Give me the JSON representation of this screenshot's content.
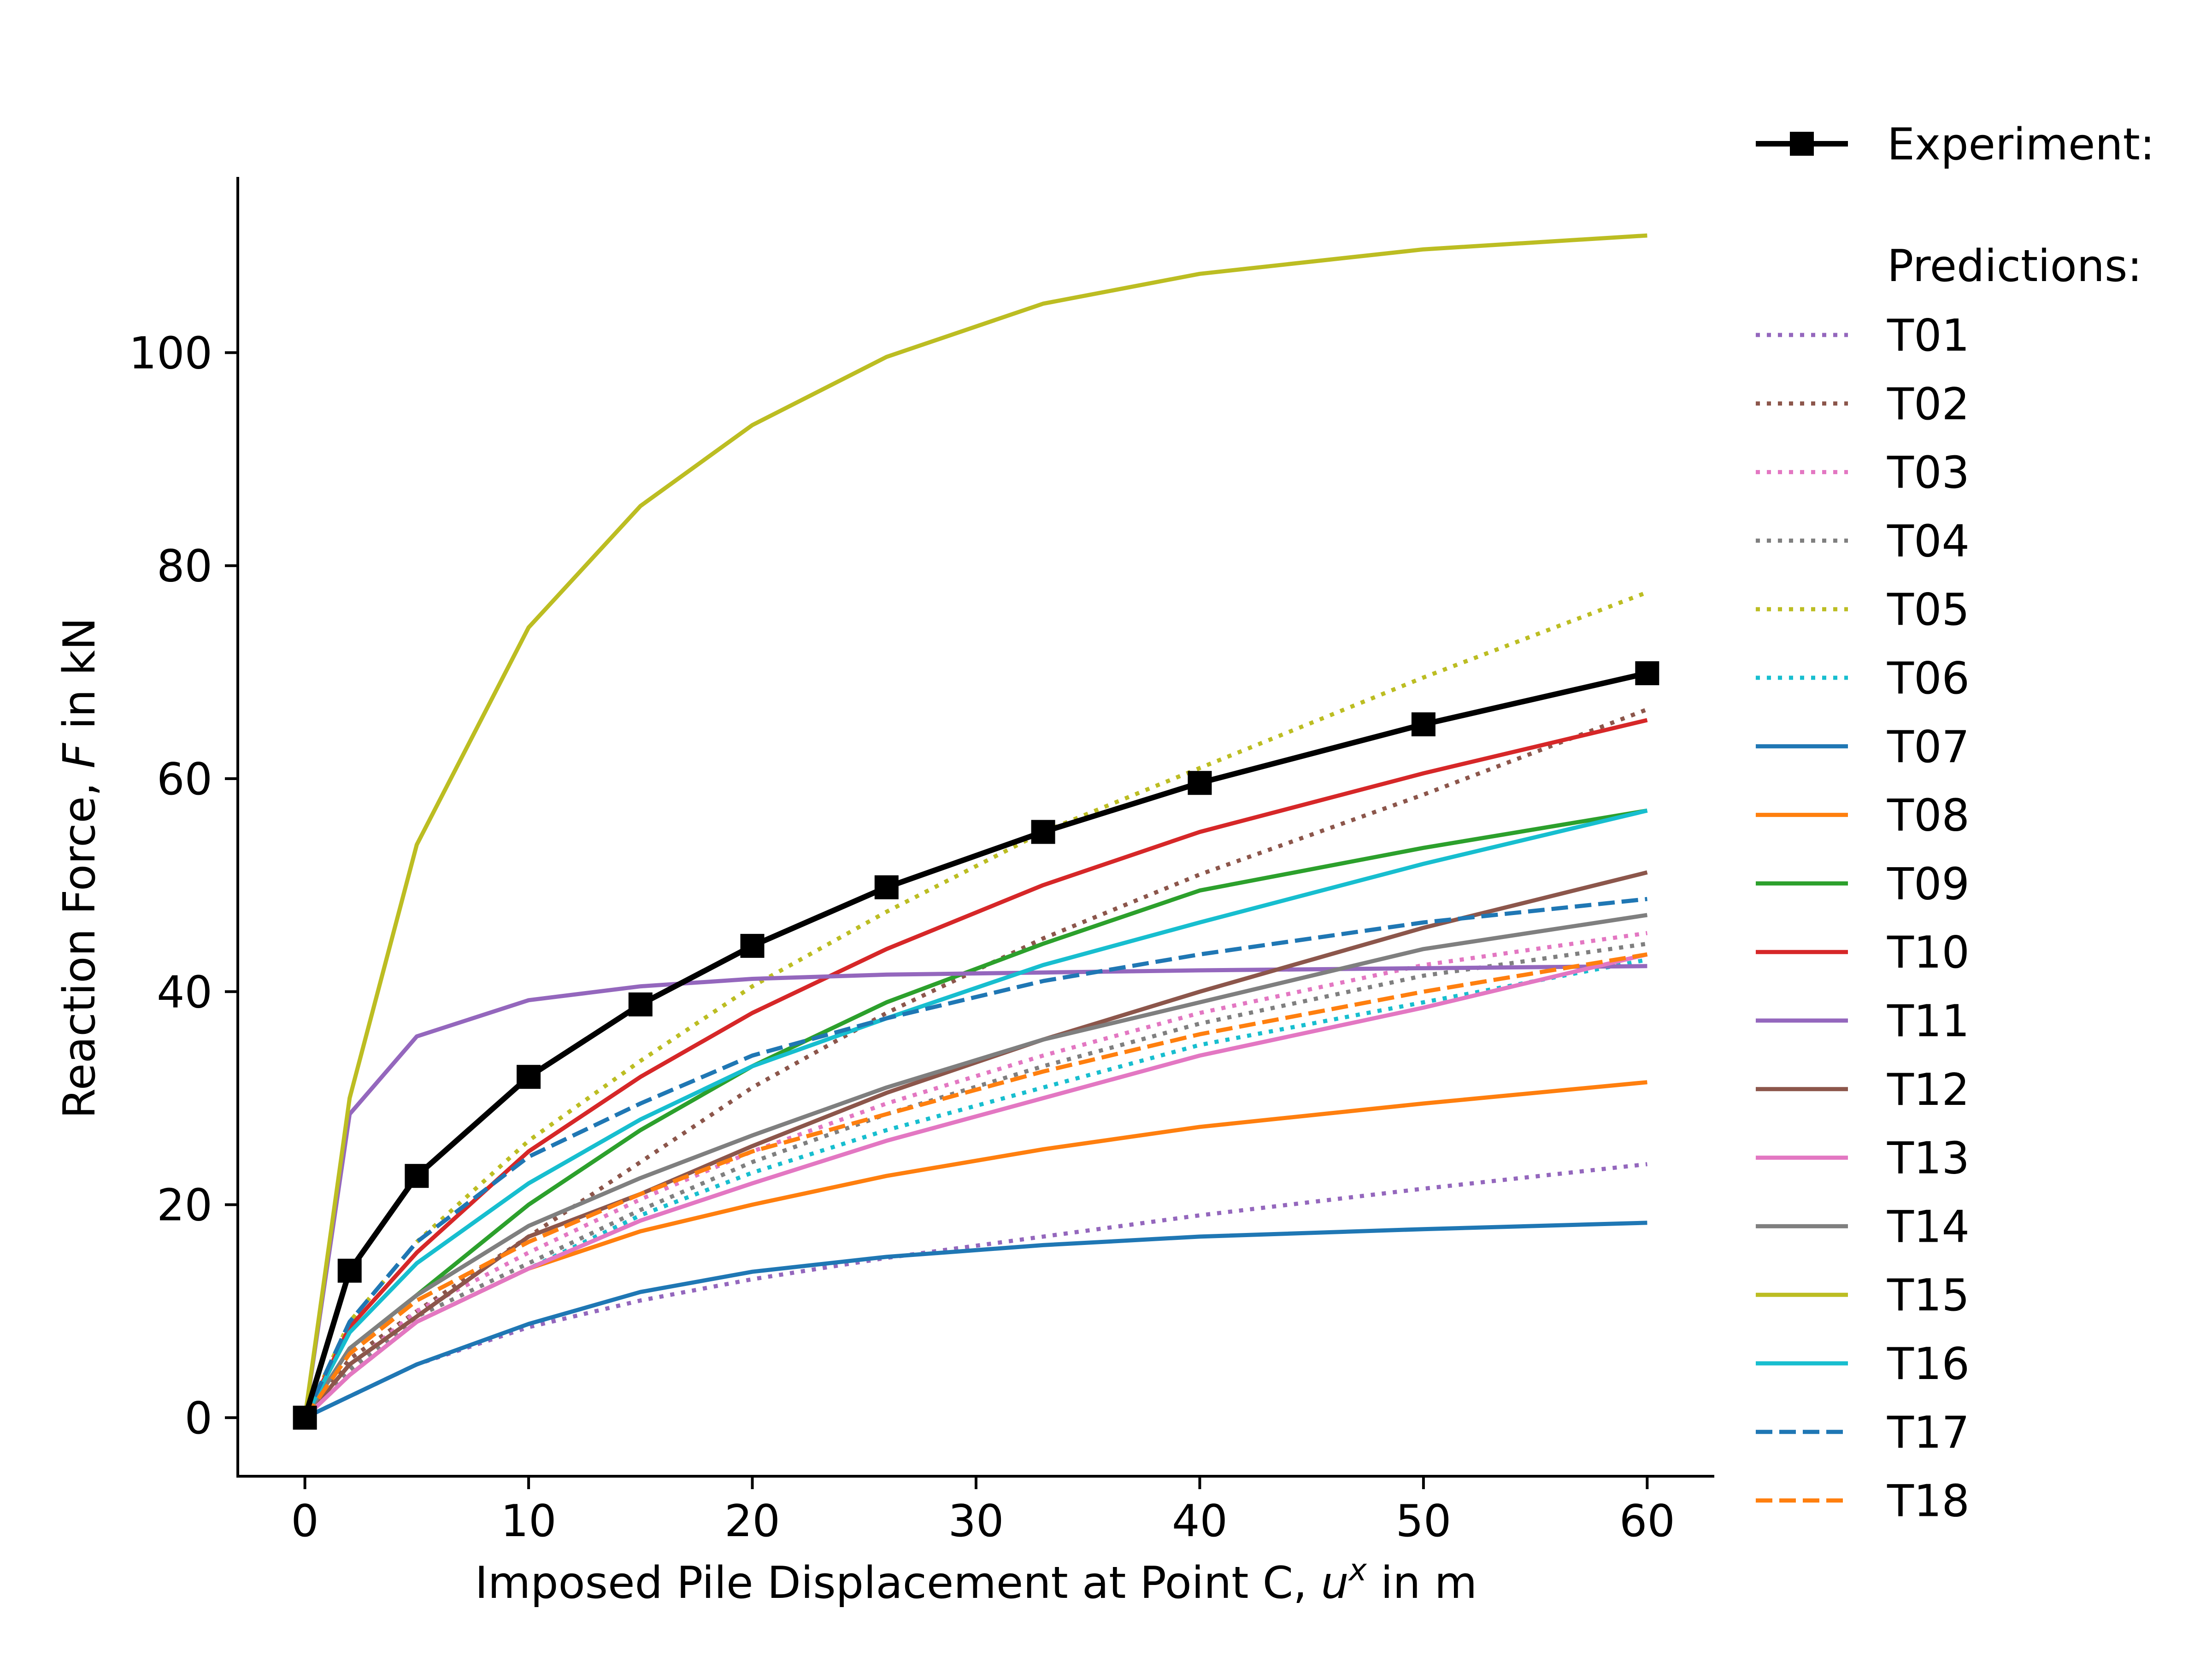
{
  "chart_data": {
    "type": "line",
    "xlabel": {
      "prefix": "Imposed Pile Displacement at Point C, ",
      "var": "u",
      "sup": "x",
      "suffix": " in m"
    },
    "ylabel": {
      "prefix": "Reaction Force, ",
      "var": "F",
      "suffix": " in kN"
    },
    "xlim": [
      -3,
      63
    ],
    "ylim": [
      -5.5,
      116.5
    ],
    "xticks": [
      0,
      10,
      20,
      30,
      40,
      50,
      60
    ],
    "yticks": [
      0,
      20,
      40,
      60,
      80,
      100
    ],
    "grid": false,
    "legend_position": "outside-right",
    "legend_headers": {
      "experiment": "Experiment:",
      "predictions": "Predictions:"
    },
    "experiment": {
      "name": "",
      "color": "#000000",
      "marker": "square",
      "x": [
        0,
        2,
        5,
        10,
        15,
        20,
        26,
        33,
        40,
        50,
        60
      ],
      "y": [
        0,
        13.8,
        22.7,
        32.0,
        38.8,
        44.3,
        49.8,
        55.0,
        59.6,
        65.1,
        69.9
      ]
    },
    "x": [
      0,
      2,
      5,
      10,
      15,
      20,
      26,
      33,
      40,
      50,
      60
    ],
    "series": [
      {
        "name": "T01",
        "color": "#9467bd",
        "dash": "dotted",
        "values": [
          0,
          2.0,
          5.0,
          8.5,
          11.0,
          13.0,
          15.0,
          17.0,
          19.0,
          21.5,
          23.8
        ]
      },
      {
        "name": "T02",
        "color": "#8c564b",
        "dash": "dotted",
        "values": [
          0,
          5.5,
          10.0,
          17.0,
          24.0,
          31.0,
          38.0,
          45.0,
          51.0,
          58.5,
          66.5
        ]
      },
      {
        "name": "T03",
        "color": "#e377c2",
        "dash": "dotted",
        "values": [
          0,
          4.8,
          10.0,
          15.5,
          20.5,
          25.0,
          29.5,
          34.0,
          38.0,
          42.5,
          45.5
        ]
      },
      {
        "name": "T04",
        "color": "#7f7f7f",
        "dash": "dotted",
        "values": [
          0,
          4.5,
          9.5,
          14.5,
          19.5,
          24.0,
          28.5,
          33.0,
          37.0,
          41.5,
          44.5
        ]
      },
      {
        "name": "T05",
        "color": "#bcbd22",
        "dash": "dotted",
        "values": [
          0,
          9.0,
          16.5,
          26.0,
          33.5,
          40.5,
          47.5,
          55.0,
          61.0,
          69.5,
          77.5
        ]
      },
      {
        "name": "T06",
        "color": "#17becf",
        "dash": "dotted",
        "values": [
          0,
          4.0,
          9.0,
          14.0,
          19.0,
          23.0,
          27.0,
          31.0,
          35.0,
          39.0,
          43.0
        ]
      },
      {
        "name": "T07",
        "color": "#1f77b4",
        "dash": "solid",
        "values": [
          0,
          2.0,
          5.0,
          8.8,
          11.8,
          13.7,
          15.1,
          16.2,
          17.0,
          17.7,
          18.3
        ]
      },
      {
        "name": "T08",
        "color": "#ff7f0e",
        "dash": "solid",
        "values": [
          0,
          4.0,
          9.0,
          14.0,
          17.5,
          20.0,
          22.7,
          25.2,
          27.3,
          29.5,
          31.5
        ]
      },
      {
        "name": "T09",
        "color": "#2ca02c",
        "dash": "solid",
        "values": [
          0,
          6.5,
          11.5,
          20.0,
          27.0,
          33.0,
          39.0,
          44.5,
          49.5,
          53.5,
          57.0
        ]
      },
      {
        "name": "T10",
        "color": "#d62728",
        "dash": "solid",
        "values": [
          0,
          8.5,
          15.5,
          25.0,
          32.0,
          38.0,
          44.0,
          50.0,
          55.0,
          60.5,
          65.5
        ]
      },
      {
        "name": "T11",
        "color": "#9467bd",
        "dash": "solid",
        "values": [
          0,
          28.5,
          35.8,
          39.2,
          40.5,
          41.2,
          41.6,
          41.8,
          42.0,
          42.2,
          42.4
        ]
      },
      {
        "name": "T12",
        "color": "#8c564b",
        "dash": "solid",
        "values": [
          0,
          5.0,
          9.5,
          17.0,
          21.0,
          25.5,
          30.5,
          35.5,
          40.0,
          46.0,
          51.2
        ]
      },
      {
        "name": "T13",
        "color": "#e377c2",
        "dash": "solid",
        "values": [
          0,
          4.0,
          9.0,
          14.0,
          18.5,
          22.0,
          26.0,
          30.0,
          34.0,
          38.5,
          43.5
        ]
      },
      {
        "name": "T14",
        "color": "#7f7f7f",
        "dash": "solid",
        "values": [
          0,
          6.5,
          11.5,
          18.0,
          22.5,
          26.5,
          31.0,
          35.5,
          39.0,
          44.0,
          47.2
        ]
      },
      {
        "name": "T15",
        "color": "#bcbd22",
        "dash": "solid",
        "values": [
          0,
          30.0,
          53.8,
          74.2,
          85.6,
          93.2,
          99.6,
          104.6,
          107.4,
          109.7,
          111.0
        ]
      },
      {
        "name": "T16",
        "color": "#17becf",
        "dash": "solid",
        "values": [
          0,
          8.0,
          14.5,
          22.0,
          28.0,
          33.0,
          37.5,
          42.5,
          46.5,
          52.0,
          57.0
        ]
      },
      {
        "name": "T17",
        "color": "#1f77b4",
        "dash": "dashed",
        "values": [
          0,
          9.0,
          16.5,
          24.5,
          29.5,
          34.0,
          37.5,
          41.0,
          43.5,
          46.5,
          48.7
        ]
      },
      {
        "name": "T18",
        "color": "#ff7f0e",
        "dash": "dashed",
        "values": [
          0,
          6.0,
          11.0,
          16.5,
          21.0,
          25.0,
          28.5,
          32.5,
          36.0,
          40.0,
          43.5
        ]
      }
    ]
  }
}
